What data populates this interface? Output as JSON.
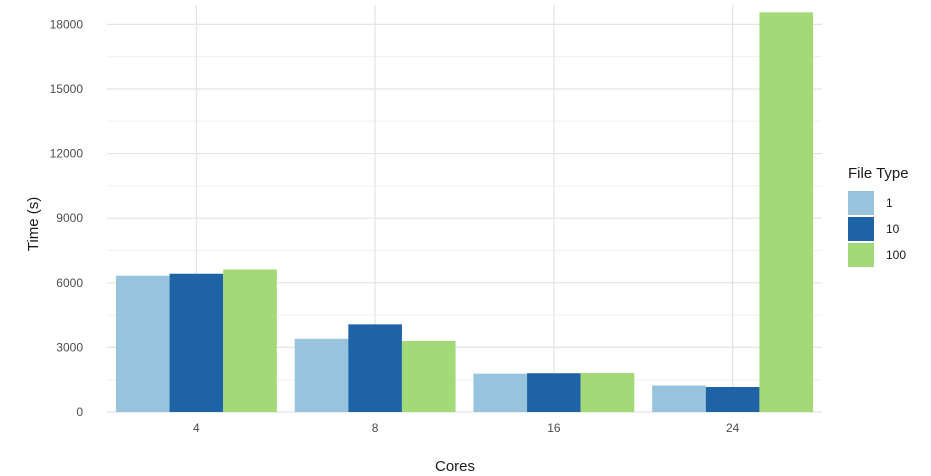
{
  "chart_data": {
    "type": "bar",
    "title": "",
    "xlabel": "Cores",
    "ylabel": "Time (s)",
    "categories": [
      "4",
      "8",
      "16",
      "24"
    ],
    "ylim": [
      0,
      18900
    ],
    "yticks": [
      "0",
      "3000",
      "6000",
      "9000",
      "12000",
      "15000",
      "18000"
    ],
    "grid": true,
    "legend": {
      "title": "File Type",
      "placement": "right"
    },
    "series": [
      {
        "name": "1",
        "color": "#97c3dd",
        "values": [
          6330,
          3400,
          1780,
          1230
        ]
      },
      {
        "name": "10",
        "color": "#1d63a6",
        "values": [
          6420,
          4070,
          1800,
          1160
        ]
      },
      {
        "name": "100",
        "color": "#a4d977",
        "values": [
          6620,
          3300,
          1810,
          18560
        ]
      }
    ]
  }
}
